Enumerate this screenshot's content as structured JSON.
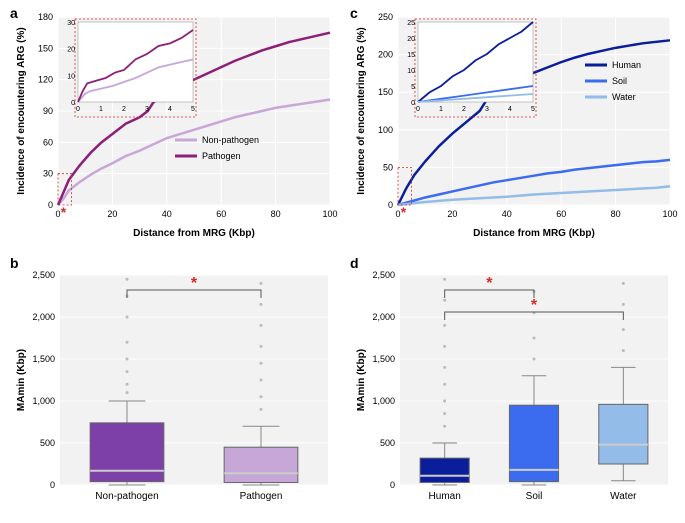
{
  "panels": {
    "a": {
      "label": "a"
    },
    "b": {
      "label": "b"
    },
    "c": {
      "label": "c"
    },
    "d": {
      "label": "d"
    }
  },
  "lineA": {
    "type": "line",
    "xlabel": "Distance from MRG (Kbp)",
    "ylabel": "Incidence of encountering ARG (%)",
    "xlim": [
      0,
      100
    ],
    "ylim": [
      0,
      180
    ],
    "xtick_step": 20,
    "ytick_step": 30,
    "bg": "#f2f2f2",
    "grid": "#ffffff",
    "series": [
      {
        "name": "Non-pathogen",
        "color": "#c7a7d8",
        "width": 2.5,
        "pts": [
          [
            0,
            0
          ],
          [
            2,
            6
          ],
          [
            4,
            14
          ],
          [
            8,
            22
          ],
          [
            12,
            29
          ],
          [
            16,
            35
          ],
          [
            20,
            40
          ],
          [
            25,
            47
          ],
          [
            30,
            52
          ],
          [
            35,
            58
          ],
          [
            40,
            64
          ],
          [
            45,
            68
          ],
          [
            50,
            72
          ],
          [
            55,
            76
          ],
          [
            60,
            80
          ],
          [
            65,
            84
          ],
          [
            70,
            87
          ],
          [
            75,
            90
          ],
          [
            80,
            93
          ],
          [
            85,
            95
          ],
          [
            90,
            97
          ],
          [
            95,
            99
          ],
          [
            100,
            101
          ]
        ]
      },
      {
        "name": "Pathogen",
        "color": "#8c1f78",
        "width": 2.5,
        "pts": [
          [
            0,
            0
          ],
          [
            2,
            12
          ],
          [
            4,
            24
          ],
          [
            8,
            38
          ],
          [
            12,
            50
          ],
          [
            16,
            60
          ],
          [
            20,
            68
          ],
          [
            25,
            78
          ],
          [
            30,
            84
          ],
          [
            33,
            90
          ],
          [
            35,
            98
          ],
          [
            40,
            108
          ],
          [
            45,
            114
          ],
          [
            50,
            120
          ],
          [
            55,
            126
          ],
          [
            60,
            132
          ],
          [
            65,
            138
          ],
          [
            70,
            143
          ],
          [
            75,
            148
          ],
          [
            80,
            152
          ],
          [
            85,
            156
          ],
          [
            90,
            159
          ],
          [
            95,
            162
          ],
          [
            100,
            165
          ]
        ]
      }
    ],
    "inset": {
      "xlim": [
        0,
        5
      ],
      "ylim": [
        0,
        30
      ],
      "xtick_step": 1,
      "ytick_step": 10,
      "series": [
        {
          "color": "#c7a7d8",
          "pts": [
            [
              0,
              0
            ],
            [
              0.3,
              3
            ],
            [
              0.5,
              4
            ],
            [
              1,
              5
            ],
            [
              1.5,
              6
            ],
            [
              2,
              7.5
            ],
            [
              2.5,
              9
            ],
            [
              3,
              11
            ],
            [
              3.5,
              13
            ],
            [
              4,
              14
            ],
            [
              4.5,
              15
            ],
            [
              5,
              16
            ]
          ]
        },
        {
          "color": "#8c1f78",
          "pts": [
            [
              0,
              0
            ],
            [
              0.2,
              4
            ],
            [
              0.4,
              7
            ],
            [
              0.8,
              8
            ],
            [
              1.2,
              9
            ],
            [
              1.6,
              11
            ],
            [
              2,
              12
            ],
            [
              2.5,
              16
            ],
            [
              3,
              18
            ],
            [
              3.5,
              21
            ],
            [
              4,
              22
            ],
            [
              4.5,
              24
            ],
            [
              5,
              27
            ]
          ]
        }
      ],
      "box_color": "#d62a2a"
    },
    "red_star": "*"
  },
  "lineC": {
    "type": "line",
    "xlabel": "Distance from MRG (Kbp)",
    "ylabel": "Incidence of encountering ARG (%)",
    "xlim": [
      0,
      100
    ],
    "ylim": [
      0,
      250
    ],
    "xtick_step": 20,
    "ytick_step": 50,
    "bg": "#f2f2f2",
    "grid": "#ffffff",
    "series": [
      {
        "name": "Human",
        "color": "#0a1e9c",
        "width": 2.5,
        "pts": [
          [
            0,
            0
          ],
          [
            3,
            22
          ],
          [
            6,
            40
          ],
          [
            10,
            58
          ],
          [
            15,
            78
          ],
          [
            20,
            95
          ],
          [
            25,
            110
          ],
          [
            30,
            125
          ],
          [
            33,
            142
          ],
          [
            35,
            148
          ],
          [
            40,
            158
          ],
          [
            45,
            168
          ],
          [
            50,
            176
          ],
          [
            55,
            183
          ],
          [
            60,
            190
          ],
          [
            65,
            196
          ],
          [
            70,
            201
          ],
          [
            75,
            205
          ],
          [
            80,
            209
          ],
          [
            85,
            212
          ],
          [
            90,
            215
          ],
          [
            95,
            217
          ],
          [
            100,
            219
          ]
        ]
      },
      {
        "name": "Soil",
        "color": "#3b6cf0",
        "width": 2.5,
        "pts": [
          [
            0,
            0
          ],
          [
            3,
            3
          ],
          [
            6,
            6
          ],
          [
            10,
            10
          ],
          [
            15,
            14
          ],
          [
            20,
            18
          ],
          [
            25,
            22
          ],
          [
            30,
            26
          ],
          [
            35,
            30
          ],
          [
            40,
            33
          ],
          [
            45,
            36
          ],
          [
            50,
            39
          ],
          [
            55,
            42
          ],
          [
            60,
            44
          ],
          [
            65,
            47
          ],
          [
            70,
            49
          ],
          [
            75,
            51
          ],
          [
            80,
            53
          ],
          [
            85,
            55
          ],
          [
            90,
            57
          ],
          [
            95,
            58
          ],
          [
            100,
            60
          ]
        ]
      },
      {
        "name": "Water",
        "color": "#93bce8",
        "width": 2.5,
        "pts": [
          [
            0,
            0
          ],
          [
            5,
            2
          ],
          [
            10,
            4
          ],
          [
            15,
            5.5
          ],
          [
            20,
            7
          ],
          [
            25,
            8
          ],
          [
            30,
            9
          ],
          [
            35,
            10
          ],
          [
            40,
            11
          ],
          [
            45,
            12.5
          ],
          [
            50,
            14
          ],
          [
            55,
            15
          ],
          [
            60,
            16
          ],
          [
            65,
            17
          ],
          [
            70,
            18
          ],
          [
            75,
            19
          ],
          [
            80,
            20
          ],
          [
            85,
            21
          ],
          [
            90,
            22
          ],
          [
            95,
            23
          ],
          [
            100,
            25
          ]
        ]
      }
    ],
    "inset": {
      "xlim": [
        0,
        5
      ],
      "ylim": [
        0,
        25
      ],
      "xtick_step": 1,
      "ytick_step": 5,
      "series": [
        {
          "color": "#0a1e9c",
          "pts": [
            [
              0,
              0
            ],
            [
              0.5,
              3
            ],
            [
              1,
              5
            ],
            [
              1.5,
              8
            ],
            [
              2,
              10
            ],
            [
              2.5,
              13
            ],
            [
              3,
              15
            ],
            [
              3.5,
              18
            ],
            [
              4,
              20
            ],
            [
              4.5,
              22
            ],
            [
              5,
              25
            ]
          ]
        },
        {
          "color": "#3b6cf0",
          "pts": [
            [
              0,
              0
            ],
            [
              1,
              1
            ],
            [
              2,
              2
            ],
            [
              3,
              3
            ],
            [
              4,
              4
            ],
            [
              5,
              5
            ]
          ]
        },
        {
          "color": "#93bce8",
          "pts": [
            [
              0,
              0
            ],
            [
              1,
              0.5
            ],
            [
              2,
              1
            ],
            [
              3,
              1.5
            ],
            [
              4,
              2
            ],
            [
              5,
              2.5
            ]
          ]
        }
      ],
      "box_color": "#d62a2a"
    },
    "red_star": "*"
  },
  "boxB": {
    "type": "boxplot",
    "ylabel": "MAmin (Kbp)",
    "ylim": [
      0,
      2500
    ],
    "ytick_step": 500,
    "bg": "#f2f2f2",
    "grid": "#ffffff",
    "outlier_color": "#bbbbbb",
    "categories": [
      "Non-pathogen",
      "Pathogen"
    ],
    "boxes": [
      {
        "fill": "#7d3fa8",
        "median": 170,
        "q1": 40,
        "q3": 740,
        "wlo": 0,
        "whi": 1000,
        "outliers": [
          1100,
          1200,
          1350,
          1500,
          1700,
          2000,
          2250,
          2450
        ]
      },
      {
        "fill": "#c7a7d8",
        "median": 140,
        "q1": 30,
        "q3": 450,
        "wlo": 0,
        "whi": 700,
        "outliers": [
          900,
          1050,
          1250,
          1450,
          1650,
          1900,
          2150,
          2400
        ]
      }
    ],
    "bracket": {
      "pairs": [
        [
          0,
          1
        ]
      ],
      "star": "*",
      "star_color": "#d62a2a"
    }
  },
  "boxD": {
    "type": "boxplot",
    "ylabel": "MAmin (Kbp)",
    "ylim": [
      0,
      2500
    ],
    "ytick_step": 500,
    "bg": "#f2f2f2",
    "grid": "#ffffff",
    "outlier_color": "#bbbbbb",
    "categories": [
      "Human",
      "Soil",
      "Water"
    ],
    "boxes": [
      {
        "fill": "#0a1e9c",
        "median": 110,
        "q1": 30,
        "q3": 320,
        "wlo": 0,
        "whi": 500,
        "outliers": [
          700,
          850,
          1000,
          1200,
          1400,
          1650,
          1900,
          2200,
          2450
        ]
      },
      {
        "fill": "#3b6cf0",
        "median": 180,
        "q1": 40,
        "q3": 950,
        "wlo": 0,
        "whi": 1300,
        "outliers": [
          1500,
          1750,
          2050,
          2300
        ]
      },
      {
        "fill": "#93bce8",
        "median": 480,
        "q1": 250,
        "q3": 960,
        "wlo": 50,
        "whi": 1400,
        "outliers": [
          1600,
          1850,
          2150,
          2400
        ]
      }
    ],
    "bracket": {
      "pairs": [
        [
          0,
          1
        ],
        [
          0,
          2
        ]
      ],
      "star": "*",
      "star_color": "#d62a2a"
    }
  }
}
